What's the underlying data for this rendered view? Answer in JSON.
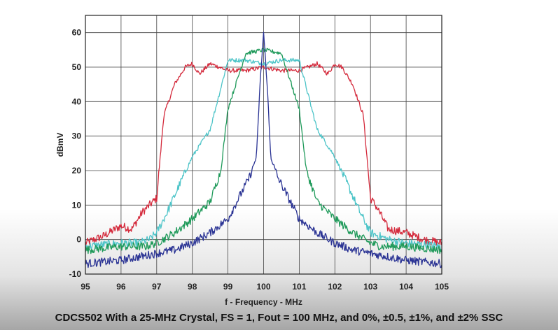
{
  "caption": "CDCS502 With a 25-MHz Crystal, FS = 1, Fout = 100 MHz, and 0%, ±0.5, ±1%, and ±2% SSC",
  "chart_data": {
    "type": "line",
    "xlabel": "f - Frequency - MHz",
    "ylabel": "dBmV",
    "xlim": [
      95,
      105
    ],
    "ylim": [
      -10,
      65
    ],
    "x_ticks": [
      "95",
      "96",
      "97",
      "98",
      "99",
      "100",
      "101",
      "102",
      "103",
      "104",
      "105"
    ],
    "y_ticks": [
      "-10",
      "0",
      "10",
      "20",
      "30",
      "40",
      "50",
      "60"
    ],
    "grid": true,
    "legend": "none",
    "series": [
      {
        "color": "#d42a3c",
        "x": [
          95,
          95.5,
          96,
          96.3,
          96.6,
          96.8,
          97,
          97.2,
          97.5,
          97.8,
          98,
          98.2,
          98.5,
          99,
          99.5,
          100,
          100.5,
          101,
          101.5,
          101.8,
          102,
          102.2,
          102.5,
          102.8,
          103,
          103.2,
          103.5,
          104,
          104.5,
          105
        ],
        "values": [
          -1,
          1,
          4,
          3,
          8,
          10,
          12,
          36,
          45,
          50,
          51,
          48,
          51,
          49,
          49,
          50,
          49,
          49,
          51,
          48,
          51,
          50,
          45,
          36,
          12,
          9,
          3,
          2,
          0,
          -1
        ]
      },
      {
        "color": "#4cc4c8",
        "x": [
          95,
          96,
          96.5,
          96.8,
          97,
          97.3,
          97.6,
          98,
          98.5,
          99,
          99.5,
          100,
          100.5,
          101,
          101.5,
          102,
          102.4,
          102.7,
          103,
          103.5,
          104,
          105
        ],
        "values": [
          -2,
          -1,
          -1,
          0,
          2,
          8,
          15,
          24,
          32,
          52,
          52,
          51,
          52,
          52,
          32,
          24,
          15,
          8,
          2,
          0,
          -1,
          -2
        ]
      },
      {
        "color": "#1f9a5a",
        "x": [
          95,
          96,
          96.7,
          97,
          97.5,
          98,
          98.5,
          98.8,
          99,
          99.5,
          100,
          100.5,
          101,
          101.2,
          101.5,
          102,
          102.5,
          103,
          103.3,
          104,
          105
        ],
        "values": [
          -3,
          -2,
          -2,
          -1,
          2,
          6,
          11,
          20,
          38,
          54,
          55,
          54,
          38,
          20,
          11,
          6,
          2,
          -1,
          -2,
          -2,
          -3
        ]
      },
      {
        "color": "#2a3394",
        "x": [
          95,
          96,
          96.5,
          97,
          97.5,
          98,
          98.5,
          99,
          99.3,
          99.6,
          99.8,
          99.9,
          100,
          100.1,
          100.2,
          100.4,
          100.7,
          101,
          101.5,
          102,
          102.5,
          103,
          103.5,
          104,
          105
        ],
        "values": [
          -7,
          -6,
          -5,
          -4,
          -3,
          -1,
          2,
          6,
          12,
          18,
          24,
          45,
          60,
          45,
          24,
          18,
          12,
          6,
          2,
          -1,
          -3,
          -4,
          -5,
          -6,
          -7
        ]
      }
    ]
  }
}
